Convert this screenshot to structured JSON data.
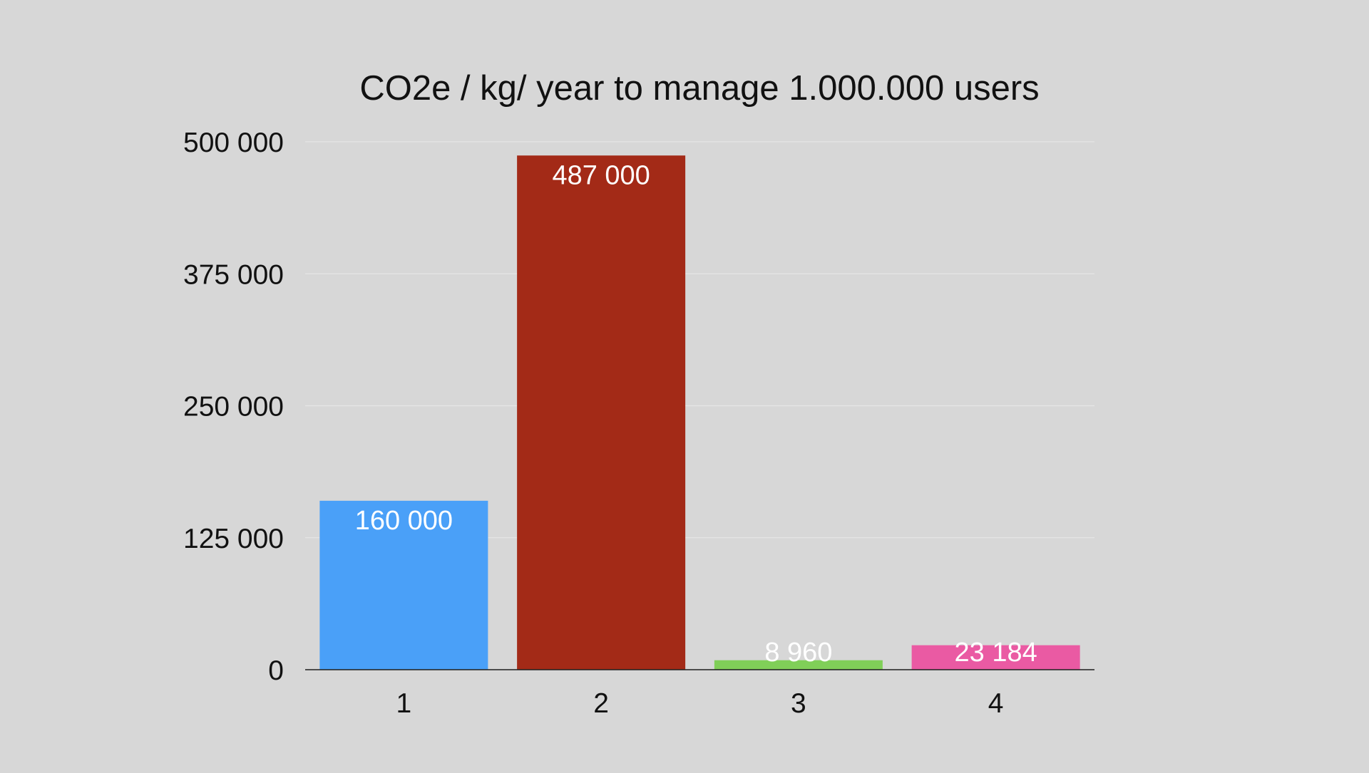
{
  "chart_data": {
    "type": "bar",
    "title": "CO2e / kg/ year to manage 1.000.000 users",
    "xlabel": "",
    "ylabel": "",
    "categories": [
      "1",
      "2",
      "3",
      "4"
    ],
    "values": [
      160000,
      487000,
      8960,
      23184
    ],
    "value_labels": [
      "160 000",
      "487 000",
      "8 960",
      "23 184"
    ],
    "colors": [
      "#4aa0f8",
      "#a32a17",
      "#80cf58",
      "#ea5aa3"
    ],
    "ylim": [
      0,
      500000
    ],
    "yticks": [
      0,
      125000,
      250000,
      375000,
      500000
    ],
    "ytick_labels": [
      "0",
      "125 000",
      "250 000",
      "375 000",
      "500 000"
    ],
    "grid": true,
    "legend": "none"
  }
}
